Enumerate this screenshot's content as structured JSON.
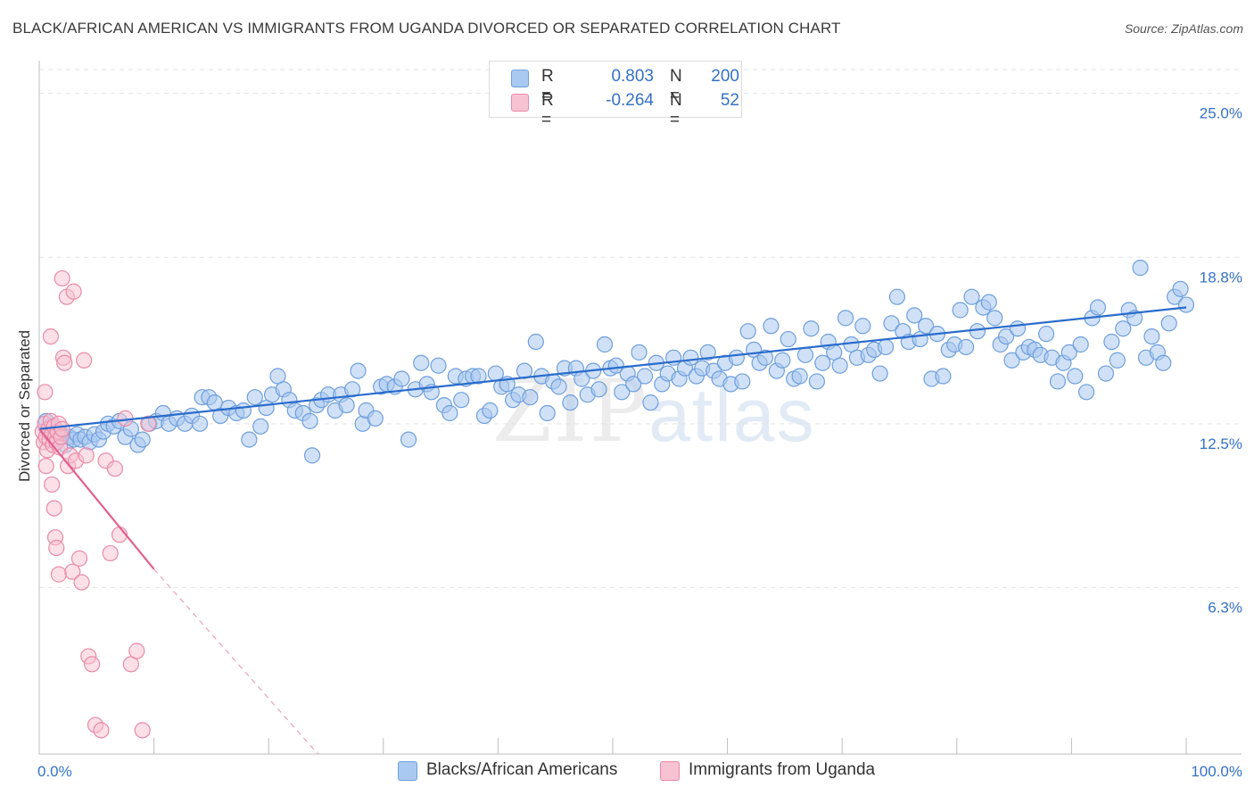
{
  "title": "BLACK/AFRICAN AMERICAN VS IMMIGRANTS FROM UGANDA DIVORCED OR SEPARATED CORRELATION CHART",
  "source": "Source: ZipAtlas.com",
  "watermark": {
    "zip": "ZIP",
    "atlas": "atlas"
  },
  "legend": {
    "series1": {
      "r_label": "R =",
      "r_value": "0.803",
      "n_label": "N =",
      "n_value": "200"
    },
    "series2": {
      "r_label": "R =",
      "r_value": "-0.264",
      "n_label": "N =",
      "n_value": "52"
    }
  },
  "bottom_legend": {
    "series1": "Blacks/African Americans",
    "series2": "Immigrants from Uganda"
  },
  "colors": {
    "blue_fill": "#a9c9f0",
    "blue_stroke": "#6f9fdc",
    "blue_line": "#2a6ccc",
    "pink_fill": "#f7c2d2",
    "pink_stroke": "#e98aa9",
    "pink_line": "#e0608f",
    "tick_label": "#3571c6",
    "grid": "#e3e3e3"
  },
  "chart_data": {
    "type": "scatter",
    "title": "BLACK/AFRICAN AMERICAN VS IMMIGRANTS FROM UGANDA DIVORCED OR SEPARATED CORRELATION CHART",
    "xlabel": "",
    "ylabel": "Divorced or Separated",
    "xlim": [
      0,
      100
    ],
    "ylim": [
      0,
      25.9
    ],
    "x_tick_labels": [
      "0.0%",
      "100.0%"
    ],
    "y_ticks": [
      {
        "value": 6.3,
        "label": "6.3%"
      },
      {
        "value": 12.5,
        "label": "12.5%"
      },
      {
        "value": 18.8,
        "label": "18.8%"
      },
      {
        "value": 25.0,
        "label": "25.0%"
      }
    ],
    "series": [
      {
        "name": "Blacks/African Americans",
        "color": "#a9c9f0",
        "points": [
          [
            0.6,
            12.6
          ],
          [
            0.8,
            12.2
          ],
          [
            1.0,
            12.4
          ],
          [
            1.3,
            11.9
          ],
          [
            1.6,
            12.0
          ],
          [
            1.9,
            12.1
          ],
          [
            2.3,
            11.7
          ],
          [
            2.6,
            12.0
          ],
          [
            3.0,
            11.9
          ],
          [
            3.3,
            12.1
          ],
          [
            3.6,
            11.9
          ],
          [
            4.0,
            12.0
          ],
          [
            4.4,
            11.8
          ],
          [
            4.8,
            12.1
          ],
          [
            5.2,
            11.9
          ],
          [
            5.6,
            12.2
          ],
          [
            6.0,
            12.5
          ],
          [
            6.5,
            12.4
          ],
          [
            7.0,
            12.6
          ],
          [
            7.5,
            12.0
          ],
          [
            8.0,
            12.3
          ],
          [
            8.6,
            11.7
          ],
          [
            9.0,
            11.9
          ],
          [
            9.6,
            12.5
          ],
          [
            10.2,
            12.6
          ],
          [
            10.8,
            12.9
          ],
          [
            11.3,
            12.5
          ],
          [
            12.0,
            12.7
          ],
          [
            12.7,
            12.5
          ],
          [
            13.3,
            12.8
          ],
          [
            14.0,
            12.5
          ],
          [
            14.2,
            13.5
          ],
          [
            14.8,
            13.5
          ],
          [
            15.3,
            13.3
          ],
          [
            15.8,
            12.8
          ],
          [
            16.5,
            13.1
          ],
          [
            17.2,
            12.9
          ],
          [
            17.8,
            13.0
          ],
          [
            18.3,
            11.9
          ],
          [
            18.8,
            13.5
          ],
          [
            19.3,
            12.4
          ],
          [
            19.8,
            13.1
          ],
          [
            20.3,
            13.6
          ],
          [
            20.8,
            14.3
          ],
          [
            21.3,
            13.8
          ],
          [
            21.8,
            13.4
          ],
          [
            22.3,
            13.0
          ],
          [
            23.0,
            12.9
          ],
          [
            23.6,
            12.6
          ],
          [
            23.8,
            11.3
          ],
          [
            24.2,
            13.2
          ],
          [
            24.6,
            13.4
          ],
          [
            25.2,
            13.6
          ],
          [
            25.8,
            13.0
          ],
          [
            26.3,
            13.6
          ],
          [
            26.8,
            13.2
          ],
          [
            27.3,
            13.8
          ],
          [
            27.8,
            14.5
          ],
          [
            28.2,
            12.5
          ],
          [
            28.5,
            13.0
          ],
          [
            29.3,
            12.7
          ],
          [
            29.8,
            13.9
          ],
          [
            30.3,
            14.0
          ],
          [
            31.0,
            13.9
          ],
          [
            31.6,
            14.2
          ],
          [
            32.2,
            11.9
          ],
          [
            32.8,
            13.8
          ],
          [
            33.3,
            14.8
          ],
          [
            33.8,
            14.0
          ],
          [
            34.2,
            13.7
          ],
          [
            34.8,
            14.7
          ],
          [
            35.3,
            13.2
          ],
          [
            35.8,
            12.9
          ],
          [
            36.3,
            14.3
          ],
          [
            36.8,
            13.4
          ],
          [
            37.2,
            14.2
          ],
          [
            37.8,
            14.3
          ],
          [
            38.3,
            14.3
          ],
          [
            38.8,
            12.8
          ],
          [
            39.3,
            13.0
          ],
          [
            39.8,
            14.4
          ],
          [
            40.3,
            13.9
          ],
          [
            40.8,
            14.0
          ],
          [
            41.3,
            13.4
          ],
          [
            41.8,
            13.6
          ],
          [
            42.3,
            14.5
          ],
          [
            42.8,
            13.5
          ],
          [
            43.3,
            15.6
          ],
          [
            43.8,
            14.3
          ],
          [
            44.3,
            12.9
          ],
          [
            44.8,
            14.1
          ],
          [
            45.3,
            13.9
          ],
          [
            45.8,
            14.6
          ],
          [
            46.3,
            13.3
          ],
          [
            46.8,
            14.6
          ],
          [
            47.3,
            14.2
          ],
          [
            47.8,
            13.6
          ],
          [
            48.3,
            14.5
          ],
          [
            48.8,
            13.8
          ],
          [
            49.3,
            15.5
          ],
          [
            49.8,
            14.6
          ],
          [
            50.3,
            14.7
          ],
          [
            50.8,
            13.7
          ],
          [
            51.3,
            14.4
          ],
          [
            51.8,
            14.0
          ],
          [
            52.3,
            15.2
          ],
          [
            52.8,
            14.3
          ],
          [
            53.3,
            13.3
          ],
          [
            53.8,
            14.8
          ],
          [
            54.3,
            14.0
          ],
          [
            54.8,
            14.4
          ],
          [
            55.3,
            15.0
          ],
          [
            55.8,
            14.2
          ],
          [
            56.3,
            14.6
          ],
          [
            56.8,
            15.0
          ],
          [
            57.3,
            14.3
          ],
          [
            57.8,
            14.6
          ],
          [
            58.3,
            15.2
          ],
          [
            58.8,
            14.5
          ],
          [
            59.3,
            14.2
          ],
          [
            59.8,
            14.8
          ],
          [
            60.3,
            14.0
          ],
          [
            60.8,
            15.0
          ],
          [
            61.3,
            14.1
          ],
          [
            61.8,
            16.0
          ],
          [
            62.3,
            15.3
          ],
          [
            62.8,
            14.8
          ],
          [
            63.3,
            15.0
          ],
          [
            63.8,
            16.2
          ],
          [
            64.3,
            14.5
          ],
          [
            64.8,
            14.9
          ],
          [
            65.3,
            15.7
          ],
          [
            65.8,
            14.2
          ],
          [
            66.3,
            14.3
          ],
          [
            66.8,
            15.1
          ],
          [
            67.3,
            16.1
          ],
          [
            67.8,
            14.1
          ],
          [
            68.3,
            14.8
          ],
          [
            68.8,
            15.6
          ],
          [
            69.3,
            15.2
          ],
          [
            69.8,
            14.7
          ],
          [
            70.3,
            16.5
          ],
          [
            70.8,
            15.5
          ],
          [
            71.3,
            15.0
          ],
          [
            71.8,
            16.2
          ],
          [
            72.3,
            15.1
          ],
          [
            72.8,
            15.3
          ],
          [
            73.3,
            14.4
          ],
          [
            73.8,
            15.4
          ],
          [
            74.3,
            16.3
          ],
          [
            74.8,
            17.3
          ],
          [
            75.3,
            16.0
          ],
          [
            75.8,
            15.6
          ],
          [
            76.3,
            16.6
          ],
          [
            76.8,
            15.7
          ],
          [
            77.3,
            16.2
          ],
          [
            77.8,
            14.2
          ],
          [
            78.3,
            15.9
          ],
          [
            78.8,
            14.3
          ],
          [
            79.3,
            15.3
          ],
          [
            79.8,
            15.5
          ],
          [
            80.3,
            16.8
          ],
          [
            80.8,
            15.4
          ],
          [
            81.3,
            17.3
          ],
          [
            81.8,
            16.0
          ],
          [
            82.3,
            16.9
          ],
          [
            82.8,
            17.1
          ],
          [
            83.3,
            16.5
          ],
          [
            83.8,
            15.5
          ],
          [
            84.3,
            15.8
          ],
          [
            84.8,
            14.9
          ],
          [
            85.3,
            16.1
          ],
          [
            85.8,
            15.2
          ],
          [
            86.3,
            15.4
          ],
          [
            86.8,
            15.3
          ],
          [
            87.3,
            15.1
          ],
          [
            87.8,
            15.9
          ],
          [
            88.3,
            15.0
          ],
          [
            88.8,
            14.1
          ],
          [
            89.3,
            14.8
          ],
          [
            89.8,
            15.2
          ],
          [
            90.3,
            14.3
          ],
          [
            90.8,
            15.5
          ],
          [
            91.3,
            13.7
          ],
          [
            91.8,
            16.5
          ],
          [
            92.3,
            16.9
          ],
          [
            93.0,
            14.4
          ],
          [
            93.5,
            15.6
          ],
          [
            94.0,
            14.9
          ],
          [
            94.5,
            16.1
          ],
          [
            95.0,
            16.8
          ],
          [
            95.5,
            16.5
          ],
          [
            96.0,
            18.4
          ],
          [
            96.5,
            15.0
          ],
          [
            97.0,
            15.8
          ],
          [
            97.5,
            15.2
          ],
          [
            98.0,
            14.8
          ],
          [
            98.5,
            16.3
          ],
          [
            99.0,
            17.3
          ],
          [
            99.5,
            17.6
          ],
          [
            100.0,
            17.0
          ]
        ]
      },
      {
        "name": "Immigrants from Uganda",
        "color": "#f7c2d2",
        "points": [
          [
            0.3,
            12.2
          ],
          [
            0.4,
            11.8
          ],
          [
            0.5,
            12.5
          ],
          [
            0.6,
            12.0
          ],
          [
            0.7,
            11.5
          ],
          [
            0.8,
            12.3
          ],
          [
            0.9,
            11.9
          ],
          [
            1.0,
            12.6
          ],
          [
            1.1,
            12.1
          ],
          [
            1.2,
            11.7
          ],
          [
            1.3,
            12.4
          ],
          [
            1.4,
            12.0
          ],
          [
            1.5,
            11.8
          ],
          [
            1.6,
            12.2
          ],
          [
            1.7,
            12.5
          ],
          [
            1.8,
            11.6
          ],
          [
            1.9,
            12.0
          ],
          [
            2.0,
            12.3
          ],
          [
            0.5,
            13.7
          ],
          [
            0.6,
            10.9
          ],
          [
            1.0,
            15.8
          ],
          [
            1.1,
            10.2
          ],
          [
            1.3,
            9.3
          ],
          [
            1.4,
            8.2
          ],
          [
            1.5,
            7.8
          ],
          [
            1.7,
            6.8
          ],
          [
            2.0,
            18.0
          ],
          [
            2.1,
            15.0
          ],
          [
            2.2,
            14.8
          ],
          [
            2.4,
            17.3
          ],
          [
            2.5,
            10.9
          ],
          [
            2.7,
            11.3
          ],
          [
            2.9,
            6.9
          ],
          [
            3.0,
            17.5
          ],
          [
            3.2,
            11.1
          ],
          [
            3.5,
            7.4
          ],
          [
            3.7,
            6.5
          ],
          [
            3.9,
            14.9
          ],
          [
            4.1,
            11.3
          ],
          [
            4.3,
            3.7
          ],
          [
            4.6,
            3.4
          ],
          [
            4.9,
            1.1
          ],
          [
            5.4,
            0.9
          ],
          [
            5.8,
            11.1
          ],
          [
            6.2,
            7.6
          ],
          [
            6.6,
            10.8
          ],
          [
            7.0,
            8.3
          ],
          [
            7.5,
            12.7
          ],
          [
            8.0,
            3.4
          ],
          [
            8.5,
            3.9
          ],
          [
            9.0,
            0.9
          ],
          [
            9.5,
            12.5
          ]
        ]
      }
    ],
    "trendlines": [
      {
        "series": "Blacks/African Americans",
        "x": [
          0,
          100
        ],
        "y": [
          12.3,
          16.9
        ],
        "style": "solid"
      },
      {
        "series": "Immigrants from Uganda",
        "x": [
          0,
          10
        ],
        "y": [
          12.3,
          7.0
        ],
        "style": "solid"
      },
      {
        "series": "Immigrants from Uganda",
        "x": [
          10,
          24.3
        ],
        "y": [
          7.0,
          0
        ],
        "style": "dashed"
      }
    ]
  }
}
